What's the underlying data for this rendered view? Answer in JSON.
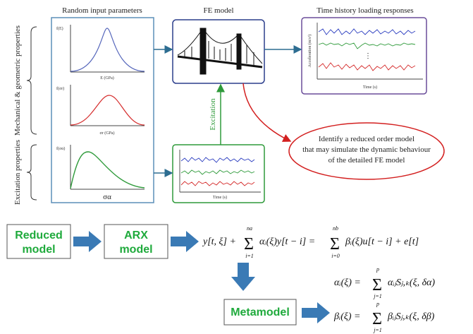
{
  "inputs": {
    "title": "Random input parameters",
    "side_labels": [
      "Mechanical & geometric properties",
      "Excitation properties"
    ],
    "plots": [
      {
        "ylabel": "f(E)",
        "xlabel": "E (GPa)"
      },
      {
        "ylabel": "f(σr)",
        "xlabel": "σr (GPa)"
      },
      {
        "ylabel": "f(σα)",
        "xlabel": "σα"
      }
    ]
  },
  "fe_model": {
    "title": "FE model"
  },
  "responses": {
    "title": "Time history loading responses",
    "ylabel": "Acceleration (m/s²)",
    "xlabel": "Time (s)"
  },
  "excitation": {
    "label": "Excitation",
    "xlabel": "Time (s)"
  },
  "goal": [
    "Identify a reduced order model",
    "that may simulate the dynamic behaviour",
    "of the detailed FE model"
  ],
  "flow": {
    "reduced": [
      "Reduced",
      "model"
    ],
    "arx": [
      "ARX",
      "model"
    ],
    "meta": "Metamodel"
  },
  "equations": {
    "arx": {
      "lhs": "y[t, ξ] +",
      "sum1": {
        "sign": "Σ",
        "upper": "na",
        "lower": "i=1"
      },
      "term1": "αᵢ(ξ)y[t − i] =",
      "sum2": {
        "sign": "Σ",
        "upper": "nb",
        "lower": "i=0"
      },
      "term2": "βᵢ(ξ)u[t − i] + e[t]"
    },
    "alpha": {
      "lhs": "αᵢ(ξ) =",
      "sum": {
        "sign": "Σ",
        "upper": "p",
        "lower": "j=1"
      },
      "term": "αᵢⱼSⱼ,ₖ(ξ, δα)"
    },
    "beta": {
      "lhs": "βᵢ(ξ) =",
      "sum": {
        "sign": "Σ",
        "upper": "p",
        "lower": "j=1"
      },
      "term": "βᵢⱼSⱼ,ₖ(ξ, δβ)"
    }
  }
}
